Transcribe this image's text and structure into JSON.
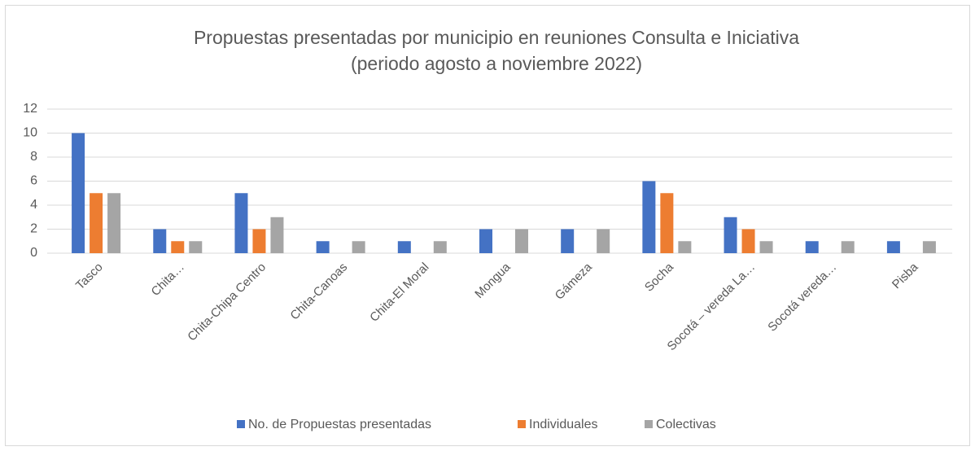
{
  "chart_data": {
    "type": "bar",
    "title": [
      "Propuestas presentadas por municipio en reuniones Consulta e Iniciativa",
      "(periodo agosto a noviembre 2022)"
    ],
    "categories": [
      "Tasco",
      "Chita…",
      "Chita-Chipa Centro",
      "Chita-Canoas",
      "Chita-El Moral",
      "Mongua",
      "Gámeza",
      "Socha",
      "Socotá – vereda La…",
      "Socotá vereda…",
      "Pisba"
    ],
    "series": [
      {
        "name": "No. de Propuestas presentadas",
        "color": "#4472c4",
        "values": [
          10,
          2,
          5,
          1,
          1,
          2,
          2,
          6,
          3,
          1,
          1
        ]
      },
      {
        "name": "Individuales",
        "color": "#ed7d31",
        "values": [
          5,
          1,
          2,
          0,
          0,
          0,
          0,
          5,
          2,
          0,
          0
        ]
      },
      {
        "name": "Colectivas",
        "color": "#a5a5a5",
        "values": [
          5,
          1,
          3,
          1,
          1,
          2,
          2,
          1,
          1,
          1,
          1
        ]
      }
    ],
    "ylim": [
      0,
      12
    ],
    "yticks": [
      0,
      2,
      4,
      6,
      8,
      10,
      12
    ],
    "grid": true,
    "legend": "bottom"
  }
}
